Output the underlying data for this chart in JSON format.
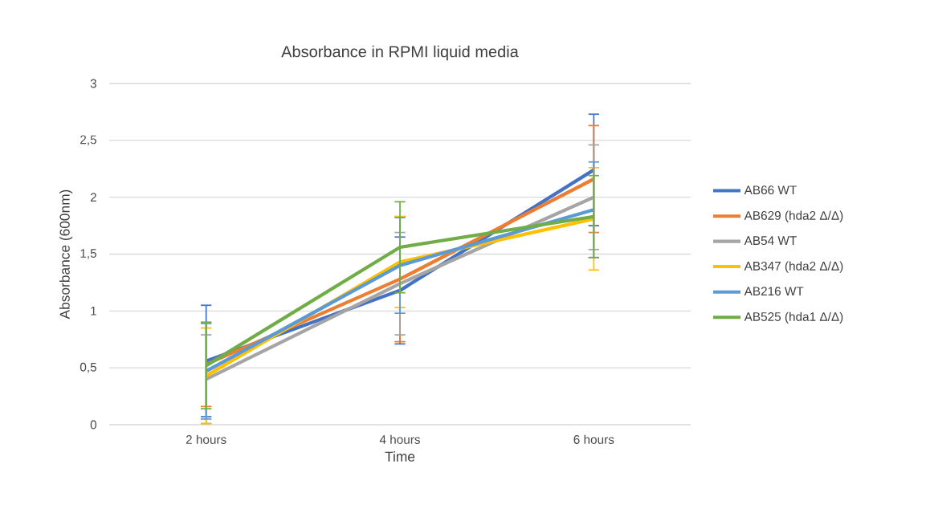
{
  "chart_data": {
    "type": "line",
    "title": "Absorbance in RPMI liquid media",
    "xlabel": "Time",
    "ylabel": "Absorbance (600nm)",
    "categories": [
      "2 hours",
      "4 hours",
      "6 hours"
    ],
    "series": [
      {
        "name": "AB66    WT",
        "color": "#4472c4",
        "values": [
          0.56,
          1.18,
          2.24
        ],
        "errors": [
          0.49,
          0.47,
          0.49
        ]
      },
      {
        "name": "AB629 (hda2 Δ/Δ)",
        "color": "#ed7d31",
        "values": [
          0.53,
          1.28,
          2.16
        ],
        "errors": [
          0.37,
          0.55,
          0.47
        ]
      },
      {
        "name": "AB54    WT",
        "color": "#a5a5a5",
        "values": [
          0.4,
          1.24,
          2.0
        ],
        "errors": [
          0.39,
          0.45,
          0.46
        ]
      },
      {
        "name": "AB347 (hda2 Δ/Δ)",
        "color": "#ffc000",
        "values": [
          0.43,
          1.43,
          1.81
        ],
        "errors": [
          0.42,
          0.4,
          0.45
        ]
      },
      {
        "name": "AB216  WT",
        "color": "#5b9bd5",
        "values": [
          0.47,
          1.4,
          1.89
        ],
        "errors": [
          0.42,
          0.42,
          0.42
        ]
      },
      {
        "name": "AB525 (hda1 Δ/Δ)",
        "color": "#70ad47",
        "values": [
          0.52,
          1.56,
          1.83
        ],
        "errors": [
          0.38,
          0.4,
          0.36
        ]
      }
    ],
    "ylim": [
      0,
      3
    ],
    "yticks": [
      0,
      {
        "value": 0.5,
        "label": "0,5"
      },
      1,
      {
        "value": 1.5,
        "label": "1,5"
      },
      2,
      {
        "value": 2.5,
        "label": "2,5"
      },
      3
    ],
    "grid": "y",
    "legend": "right"
  }
}
